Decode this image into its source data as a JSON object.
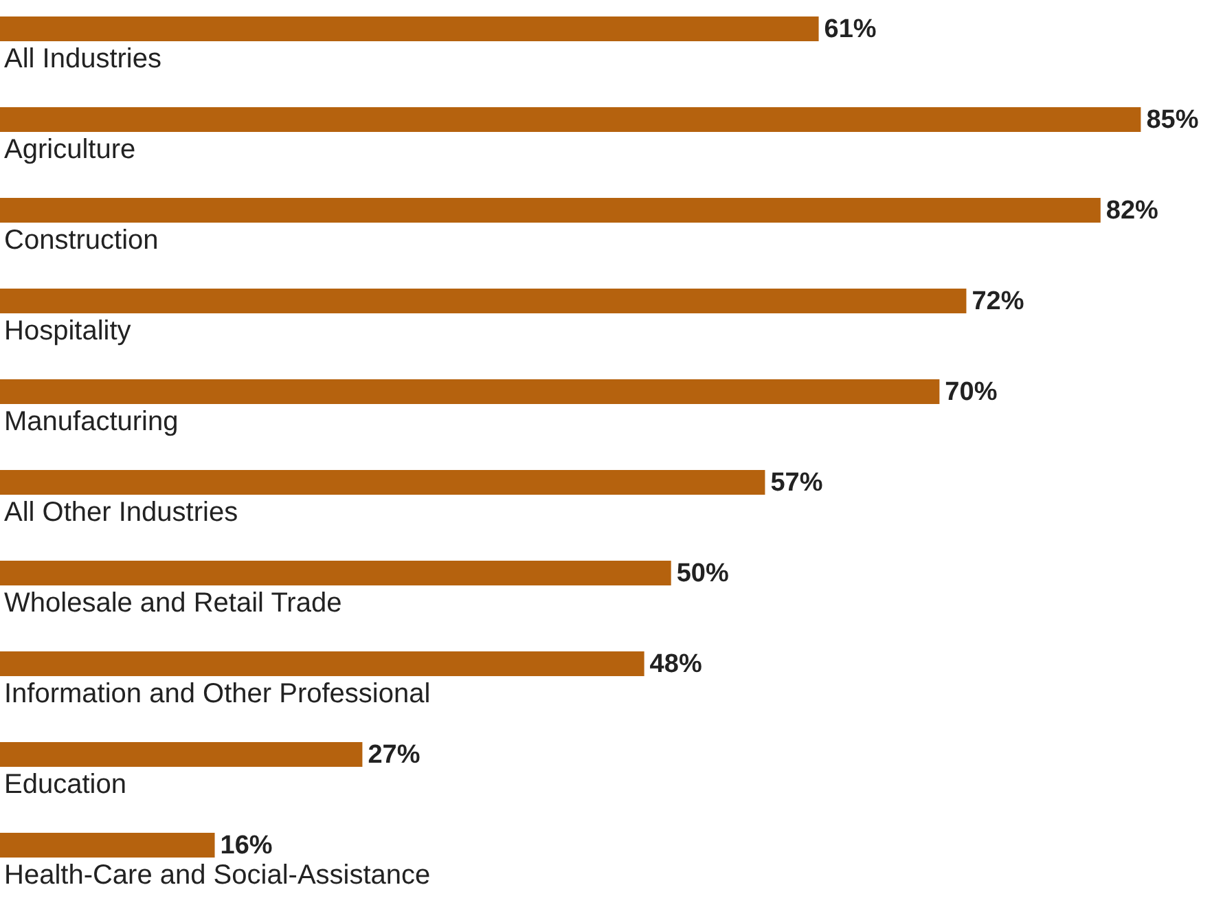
{
  "chart_data": {
    "type": "bar",
    "orientation": "horizontal",
    "color": "#b5620e",
    "categories": [
      "All Industries",
      "Agriculture",
      "Construction",
      "Hospitality",
      "Manufacturing",
      "All Other Industries",
      "Wholesale and Retail Trade",
      "Information and Other Professional",
      "Education",
      "Health-Care and Social-Assistance"
    ],
    "values": [
      61,
      85,
      82,
      72,
      70,
      57,
      50,
      48,
      27,
      16
    ],
    "value_labels": [
      "61%",
      "85%",
      "82%",
      "72%",
      "70%",
      "57%",
      "50%",
      "48%",
      "27%",
      "16%"
    ]
  }
}
